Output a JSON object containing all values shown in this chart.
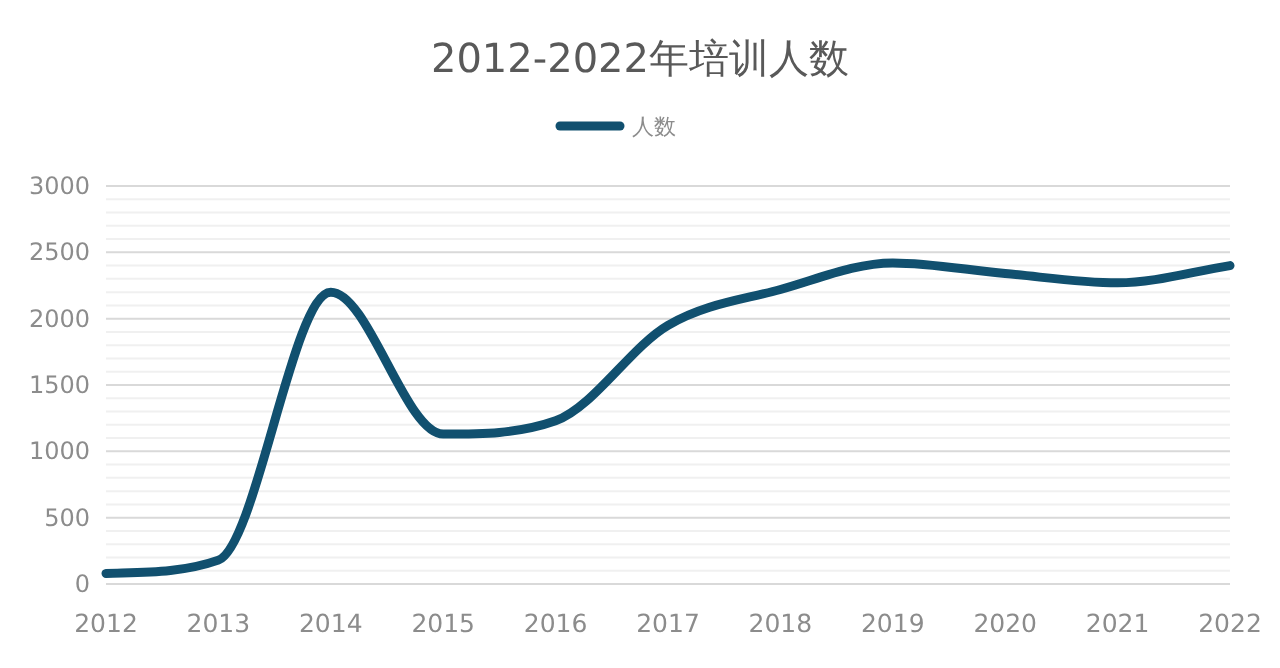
{
  "chart_data": {
    "type": "line",
    "title": "2012-2022年培训人数",
    "categories": [
      "2012",
      "2013",
      "2014",
      "2015",
      "2016",
      "2017",
      "2018",
      "2019",
      "2020",
      "2021",
      "2022"
    ],
    "series": [
      {
        "name": "人数",
        "color": "#11506f",
        "values": [
          80,
          180,
          2200,
          1130,
          1230,
          1950,
          2220,
          2420,
          2340,
          2270,
          2400
        ]
      }
    ],
    "ylim": [
      0,
      3000
    ],
    "yticks": [
      0,
      {
        "value": 100,
        "label": null
      },
      {
        "value": 200,
        "label": null
      },
      {
        "value": 300,
        "label": null
      },
      {
        "value": 400,
        "label": null
      },
      500,
      {
        "value": 600,
        "label": null
      },
      {
        "value": 700,
        "label": null
      },
      {
        "value": 800,
        "label": null
      },
      {
        "value": 900,
        "label": null
      },
      1000,
      {
        "value": 1100,
        "label": null
      },
      {
        "value": 1200,
        "label": null
      },
      {
        "value": 1300,
        "label": null
      },
      {
        "value": 1400,
        "label": null
      },
      1500,
      {
        "value": 1600,
        "label": null
      },
      {
        "value": 1700,
        "label": null
      },
      {
        "value": 1800,
        "label": null
      },
      {
        "value": 1900,
        "label": null
      },
      2000,
      {
        "value": 2100,
        "label": null
      },
      {
        "value": 2200,
        "label": null
      },
      {
        "value": 2300,
        "label": null
      },
      {
        "value": 2400,
        "label": null
      },
      2500,
      {
        "value": 2600,
        "label": null
      },
      {
        "value": 2700,
        "label": null
      },
      {
        "value": 2800,
        "label": null
      },
      {
        "value": 2900,
        "label": null
      },
      3000
    ],
    "grid": "y",
    "legend": "top",
    "marker": "none",
    "line_style": "solid"
  }
}
